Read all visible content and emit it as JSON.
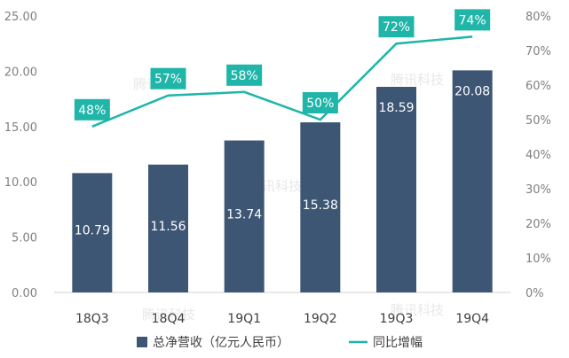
{
  "chart_data": {
    "type": "bar",
    "categories": [
      "18Q3",
      "18Q4",
      "19Q1",
      "19Q2",
      "19Q3",
      "19Q4"
    ],
    "series": [
      {
        "name": "总净营收（亿元人民币）",
        "type": "bar",
        "axis": "left",
        "values": [
          10.79,
          11.56,
          13.74,
          15.38,
          18.59,
          20.08
        ],
        "labels": [
          "10.79",
          "11.56",
          "13.74",
          "15.38",
          "18.59",
          "20.08"
        ],
        "color": "#3c5674"
      },
      {
        "name": "同比增幅",
        "type": "line",
        "axis": "right",
        "values": [
          48,
          57,
          58,
          50,
          72,
          74
        ],
        "labels": [
          "48%",
          "57%",
          "58%",
          "50%",
          "72%",
          "74%"
        ],
        "color": "#1fb5a8"
      }
    ],
    "y_left": {
      "lim": [
        0,
        25
      ],
      "ticks": [
        0,
        5,
        10,
        15,
        20,
        25
      ],
      "tick_labels": [
        "0.00",
        "5.00",
        "10.00",
        "15.00",
        "20.00",
        "25.00"
      ]
    },
    "y_right": {
      "lim": [
        0,
        80
      ],
      "ticks": [
        0,
        10,
        20,
        30,
        40,
        50,
        60,
        70,
        80
      ],
      "tick_labels": [
        "0%",
        "10%",
        "20%",
        "30%",
        "40%",
        "50%",
        "60%",
        "70%",
        "80%"
      ]
    },
    "grid": false,
    "legend": "bottom-center",
    "watermark": "腾讯科技"
  }
}
